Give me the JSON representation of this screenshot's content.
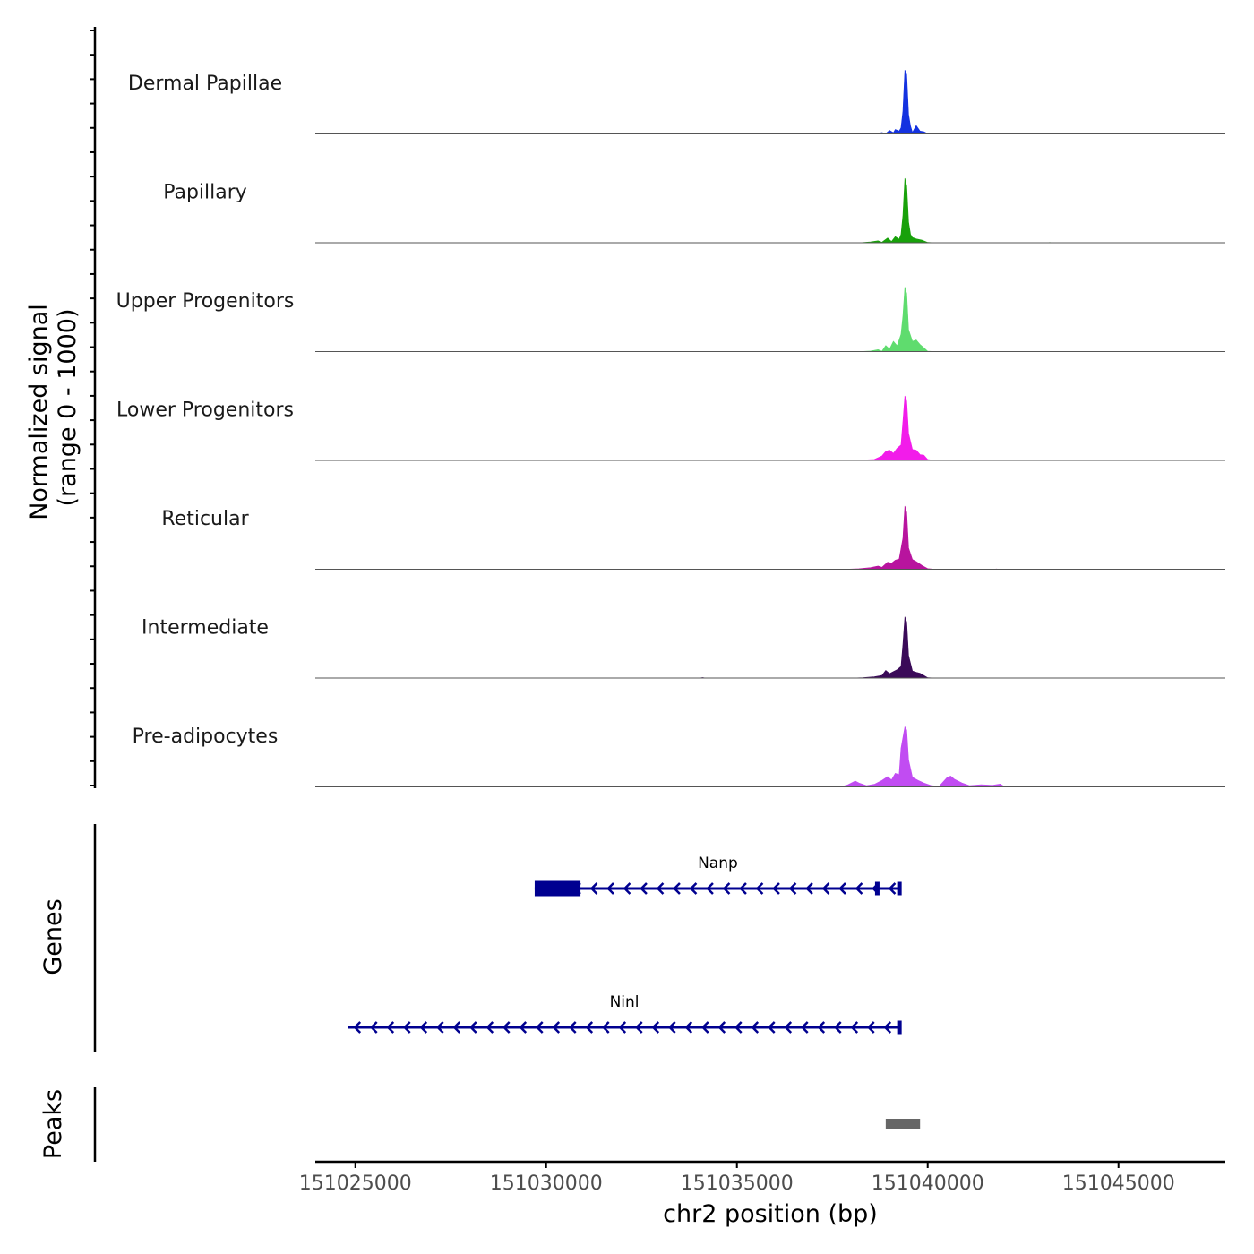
{
  "chart_data": {
    "type": "area",
    "title": "",
    "y_axis_title_line1": "Normalized signal",
    "y_axis_title_line2": "(range 0 - 1000)",
    "xlabel": "chr2 position (bp)",
    "chromosome": "chr2",
    "xlim": [
      151023950,
      151047800
    ],
    "ylim": [
      0,
      1000
    ],
    "x_ticks": [
      151025000,
      151030000,
      151035000,
      151040000,
      151045000
    ],
    "x_tick_labels": [
      "151025000",
      "151030000",
      "151035000",
      "151040000",
      "151045000"
    ],
    "tracks": [
      {
        "name": "Dermal Papillae",
        "color": "#1432E0",
        "points": [
          [
            151038300,
            0
          ],
          [
            151038500,
            3
          ],
          [
            151038700,
            10
          ],
          [
            151038800,
            22
          ],
          [
            151038900,
            6
          ],
          [
            151039000,
            55
          ],
          [
            151039100,
            20
          ],
          [
            151039150,
            70
          ],
          [
            151039250,
            45
          ],
          [
            151039300,
            95
          ],
          [
            151039350,
            350
          ],
          [
            151039400,
            990
          ],
          [
            151039450,
            920
          ],
          [
            151039500,
            300
          ],
          [
            151039550,
            120
          ],
          [
            151039600,
            25
          ],
          [
            151039700,
            130
          ],
          [
            151039800,
            45
          ],
          [
            151039900,
            35
          ],
          [
            151040000,
            5
          ],
          [
            151040200,
            0
          ]
        ],
        "noise": [
          [
            151025000,
            3
          ],
          [
            151027000,
            4
          ],
          [
            151028300,
            5
          ],
          [
            151033500,
            4
          ],
          [
            151035700,
            5
          ],
          [
            151036600,
            4
          ],
          [
            151041000,
            4
          ],
          [
            151043200,
            5
          ],
          [
            151045500,
            4
          ]
        ]
      },
      {
        "name": "Papillary",
        "color": "#18A10A",
        "points": [
          [
            151038200,
            0
          ],
          [
            151038500,
            12
          ],
          [
            151038700,
            30
          ],
          [
            151038800,
            8
          ],
          [
            151038950,
            75
          ],
          [
            151039050,
            20
          ],
          [
            151039150,
            95
          ],
          [
            151039250,
            55
          ],
          [
            151039300,
            130
          ],
          [
            151039350,
            420
          ],
          [
            151039400,
            1000
          ],
          [
            151039450,
            880
          ],
          [
            151039500,
            320
          ],
          [
            151039550,
            130
          ],
          [
            151039600,
            80
          ],
          [
            151039700,
            60
          ],
          [
            151039850,
            40
          ],
          [
            151040000,
            5
          ],
          [
            151040200,
            0
          ]
        ],
        "noise": [
          [
            151033700,
            6
          ],
          [
            151034800,
            5
          ],
          [
            151037000,
            6
          ],
          [
            151040600,
            6
          ],
          [
            151041500,
            5
          ],
          [
            151043200,
            8
          ]
        ]
      },
      {
        "name": "Upper Progenitors",
        "color": "#5FDC6E",
        "points": [
          [
            151038200,
            0
          ],
          [
            151038500,
            8
          ],
          [
            151038700,
            30
          ],
          [
            151038800,
            6
          ],
          [
            151038900,
            95
          ],
          [
            151039000,
            40
          ],
          [
            151039100,
            160
          ],
          [
            151039200,
            90
          ],
          [
            151039300,
            270
          ],
          [
            151039350,
            550
          ],
          [
            151039400,
            1000
          ],
          [
            151039450,
            900
          ],
          [
            151039500,
            340
          ],
          [
            151039600,
            160
          ],
          [
            151039700,
            180
          ],
          [
            151039800,
            110
          ],
          [
            151039900,
            60
          ],
          [
            151040000,
            5
          ],
          [
            151040200,
            0
          ]
        ],
        "noise": []
      },
      {
        "name": "Lower Progenitors",
        "color": "#F21CEA",
        "points": [
          [
            151038000,
            0
          ],
          [
            151038300,
            5
          ],
          [
            151038600,
            15
          ],
          [
            151038800,
            70
          ],
          [
            151038900,
            140
          ],
          [
            151039000,
            160
          ],
          [
            151039100,
            110
          ],
          [
            151039200,
            190
          ],
          [
            151039300,
            240
          ],
          [
            151039350,
            600
          ],
          [
            151039400,
            1000
          ],
          [
            151039450,
            920
          ],
          [
            151039500,
            420
          ],
          [
            151039600,
            170
          ],
          [
            151039700,
            160
          ],
          [
            151039800,
            90
          ],
          [
            151039900,
            80
          ],
          [
            151040000,
            15
          ],
          [
            151040200,
            0
          ]
        ],
        "noise": [
          [
            151025500,
            5
          ],
          [
            151026800,
            5
          ],
          [
            151029600,
            6
          ],
          [
            151030500,
            5
          ],
          [
            151032000,
            6
          ],
          [
            151034000,
            5
          ],
          [
            151035300,
            6
          ],
          [
            151036000,
            5
          ],
          [
            151037000,
            6
          ],
          [
            151041000,
            5
          ],
          [
            151043200,
            6
          ],
          [
            151044500,
            5
          ]
        ]
      },
      {
        "name": "Reticular",
        "color": "#B8149E",
        "points": [
          [
            151037800,
            0
          ],
          [
            151038200,
            8
          ],
          [
            151038500,
            25
          ],
          [
            151038700,
            50
          ],
          [
            151038800,
            30
          ],
          [
            151038950,
            110
          ],
          [
            151039050,
            95
          ],
          [
            151039150,
            140
          ],
          [
            151039250,
            160
          ],
          [
            151039350,
            480
          ],
          [
            151039400,
            980
          ],
          [
            151039450,
            880
          ],
          [
            151039500,
            330
          ],
          [
            151039600,
            150
          ],
          [
            151039700,
            120
          ],
          [
            151039850,
            60
          ],
          [
            151040000,
            10
          ],
          [
            151040200,
            0
          ]
        ],
        "noise": [
          [
            151033500,
            5
          ],
          [
            151036000,
            6
          ],
          [
            151041800,
            8
          ],
          [
            151043300,
            7
          ]
        ]
      },
      {
        "name": "Intermediate",
        "color": "#3A0A58",
        "points": [
          [
            151038000,
            0
          ],
          [
            151038300,
            6
          ],
          [
            151038600,
            20
          ],
          [
            151038800,
            40
          ],
          [
            151038900,
            120
          ],
          [
            151039000,
            70
          ],
          [
            151039100,
            100
          ],
          [
            151039200,
            130
          ],
          [
            151039300,
            180
          ],
          [
            151039350,
            520
          ],
          [
            151039400,
            950
          ],
          [
            151039450,
            870
          ],
          [
            151039500,
            350
          ],
          [
            151039600,
            110
          ],
          [
            151039700,
            90
          ],
          [
            151039800,
            75
          ],
          [
            151039900,
            40
          ],
          [
            151040000,
            5
          ],
          [
            151040200,
            0
          ]
        ],
        "noise": [
          [
            151034100,
            12
          ],
          [
            151037200,
            6
          ],
          [
            151041500,
            7
          ]
        ]
      },
      {
        "name": "Pre-adipocytes",
        "color": "#C14CF2",
        "points": [
          [
            151037700,
            0
          ],
          [
            151037900,
            30
          ],
          [
            151038100,
            90
          ],
          [
            151038200,
            60
          ],
          [
            151038400,
            20
          ],
          [
            151038600,
            40
          ],
          [
            151038800,
            100
          ],
          [
            151038950,
            160
          ],
          [
            151039050,
            110
          ],
          [
            151039150,
            210
          ],
          [
            151039250,
            190
          ],
          [
            151039300,
            600
          ],
          [
            151039400,
            930
          ],
          [
            151039450,
            880
          ],
          [
            151039500,
            420
          ],
          [
            151039600,
            150
          ],
          [
            151039750,
            100
          ],
          [
            151039900,
            60
          ],
          [
            151040100,
            20
          ],
          [
            151040300,
            10
          ],
          [
            151040500,
            140
          ],
          [
            151040600,
            170
          ],
          [
            151040700,
            120
          ],
          [
            151040900,
            60
          ],
          [
            151041100,
            20
          ],
          [
            151041400,
            35
          ],
          [
            151041700,
            25
          ],
          [
            151041900,
            45
          ],
          [
            151042000,
            8
          ],
          [
            151042200,
            0
          ]
        ],
        "noise": [
          [
            151024800,
            8
          ],
          [
            151025700,
            22
          ],
          [
            151026200,
            12
          ],
          [
            151027300,
            14
          ],
          [
            151028000,
            10
          ],
          [
            151028800,
            8
          ],
          [
            151029500,
            14
          ],
          [
            151030400,
            8
          ],
          [
            151031500,
            10
          ],
          [
            151032400,
            8
          ],
          [
            151033400,
            10
          ],
          [
            151034400,
            14
          ],
          [
            151035100,
            12
          ],
          [
            151035900,
            14
          ],
          [
            151036400,
            10
          ],
          [
            151037000,
            14
          ],
          [
            151037500,
            16
          ],
          [
            151042700,
            14
          ],
          [
            151043200,
            10
          ],
          [
            151044300,
            12
          ],
          [
            151045400,
            10
          ],
          [
            151046300,
            8
          ]
        ]
      }
    ],
    "genes": [
      {
        "name": "Nanp",
        "strand": "-",
        "start": 151029700,
        "end": 151039300,
        "exons": [
          [
            151029700,
            151030900
          ],
          [
            151038620,
            151038680
          ],
          [
            151039200,
            151039300
          ]
        ]
      },
      {
        "name": "Ninl",
        "strand": "-",
        "start": 151024800,
        "end": 151039300,
        "exons": [
          [
            151039200,
            151039300
          ]
        ]
      }
    ],
    "peaks": [
      [
        151038900,
        151039800
      ]
    ],
    "genes_label": "Genes",
    "peaks_label": "Peaks"
  }
}
